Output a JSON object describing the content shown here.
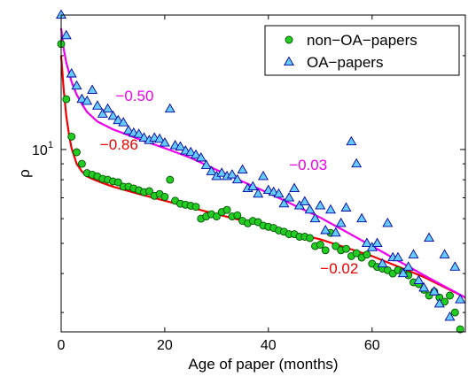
{
  "chart_data": {
    "type": "scatter",
    "xlabel": "Age of paper (months)",
    "ylabel": "ρ",
    "xlim": [
      0,
      78
    ],
    "ylim": [
      2.6,
      27
    ],
    "yscale": "log",
    "grid": false,
    "legend_placement": "top-right",
    "x_ticks": [
      {
        "value": 0,
        "label": "0"
      },
      {
        "value": 20,
        "label": "20"
      },
      {
        "value": 40,
        "label": "40"
      },
      {
        "value": 60,
        "label": "60"
      }
    ],
    "y_ticks": [
      {
        "value": 10,
        "label": "10",
        "sup": "1"
      }
    ],
    "series": [
      {
        "name": "non−OA−papers",
        "marker": "circle",
        "color": "#22cc22",
        "edge": "#005000",
        "points": [
          [
            0,
            21.8
          ],
          [
            1,
            14.5
          ],
          [
            2,
            11.0
          ],
          [
            3,
            9.8
          ],
          [
            4,
            9.0
          ],
          [
            5,
            8.4
          ],
          [
            6,
            8.3
          ],
          [
            7,
            8.2
          ],
          [
            8,
            8.05
          ],
          [
            9,
            8.0
          ],
          [
            10,
            7.9
          ],
          [
            11,
            7.85
          ],
          [
            12,
            7.6
          ],
          [
            13,
            7.6
          ],
          [
            14,
            7.5
          ],
          [
            15,
            7.4
          ],
          [
            16,
            7.3
          ],
          [
            17,
            7.35
          ],
          [
            18,
            7.1
          ],
          [
            19,
            7.2
          ],
          [
            20,
            7.05
          ],
          [
            21,
            8.0
          ],
          [
            22,
            6.85
          ],
          [
            23,
            6.7
          ],
          [
            24,
            6.65
          ],
          [
            25,
            6.6
          ],
          [
            26,
            6.55
          ],
          [
            27,
            6.0
          ],
          [
            28,
            6.1
          ],
          [
            29,
            6.2
          ],
          [
            30,
            6.1
          ],
          [
            31,
            6.3
          ],
          [
            32,
            6.4
          ],
          [
            33,
            6.1
          ],
          [
            34,
            6.15
          ],
          [
            35,
            5.9
          ],
          [
            36,
            5.8
          ],
          [
            37,
            5.9
          ],
          [
            38,
            5.85
          ],
          [
            39,
            5.7
          ],
          [
            40,
            5.65
          ],
          [
            41,
            5.6
          ],
          [
            42,
            5.5
          ],
          [
            43,
            5.45
          ],
          [
            44,
            5.35
          ],
          [
            45,
            5.35
          ],
          [
            46,
            5.25
          ],
          [
            47,
            5.25
          ],
          [
            48,
            5.2
          ],
          [
            49,
            4.9
          ],
          [
            50,
            4.95
          ],
          [
            51,
            4.75
          ],
          [
            52,
            5.4
          ],
          [
            53,
            4.9
          ],
          [
            54,
            4.75
          ],
          [
            55,
            4.8
          ],
          [
            56,
            4.55
          ],
          [
            57,
            4.65
          ],
          [
            58,
            4.5
          ],
          [
            59,
            4.6
          ],
          [
            60,
            4.3
          ],
          [
            61,
            4.2
          ],
          [
            62,
            4.15
          ],
          [
            63,
            4.1
          ],
          [
            64,
            4.0
          ],
          [
            65,
            4.1
          ],
          [
            66,
            4.05
          ],
          [
            67,
            3.95
          ],
          [
            68,
            3.75
          ],
          [
            69,
            3.7
          ],
          [
            70,
            3.55
          ],
          [
            71,
            3.4
          ],
          [
            72,
            3.5
          ],
          [
            73,
            3.35
          ],
          [
            74,
            3.25
          ],
          [
            75,
            3.4
          ],
          [
            76,
            3.0
          ],
          [
            77,
            2.65
          ]
        ]
      },
      {
        "name": "OA−papers",
        "marker": "triangle",
        "color": "#66ccff",
        "edge": "#0000a0",
        "points": [
          [
            0,
            27.0
          ],
          [
            1,
            23.2
          ],
          [
            2,
            17.5
          ],
          [
            3,
            16.0
          ],
          [
            4,
            14.5
          ],
          [
            5,
            14.3
          ],
          [
            6,
            15.5
          ],
          [
            7,
            13.8
          ],
          [
            8,
            13.0
          ],
          [
            9,
            13.5
          ],
          [
            10,
            12.8
          ],
          [
            11,
            12.4
          ],
          [
            12,
            12.2
          ],
          [
            13,
            11.5
          ],
          [
            14,
            11.3
          ],
          [
            15,
            11.2
          ],
          [
            16,
            10.9
          ],
          [
            17,
            10.7
          ],
          [
            18,
            10.9
          ],
          [
            19,
            10.8
          ],
          [
            20,
            10.5
          ],
          [
            21,
            13.5
          ],
          [
            22,
            10.3
          ],
          [
            23,
            10.2
          ],
          [
            24,
            9.9
          ],
          [
            25,
            9.8
          ],
          [
            26,
            9.6
          ],
          [
            27,
            9.4
          ],
          [
            28,
            8.9
          ],
          [
            29,
            8.5
          ],
          [
            30,
            8.2
          ],
          [
            31,
            8.4
          ],
          [
            32,
            8.2
          ],
          [
            33,
            8.3
          ],
          [
            34,
            8.0
          ],
          [
            35,
            8.6
          ],
          [
            36,
            7.5
          ],
          [
            37,
            7.6
          ],
          [
            38,
            7.2
          ],
          [
            39,
            8.2
          ],
          [
            40,
            7.4
          ],
          [
            41,
            7.3
          ],
          [
            42,
            7.2
          ],
          [
            43,
            6.7
          ],
          [
            44,
            7.0
          ],
          [
            45,
            7.5
          ],
          [
            46,
            6.6
          ],
          [
            47,
            6.8
          ],
          [
            48,
            6.4
          ],
          [
            49,
            6.0
          ],
          [
            50,
            6.6
          ],
          [
            51,
            5.5
          ],
          [
            52,
            6.4
          ],
          [
            53,
            5.4
          ],
          [
            54,
            5.8
          ],
          [
            55,
            6.5
          ],
          [
            56,
            10.6
          ],
          [
            57,
            9.0
          ],
          [
            58,
            6.0
          ],
          [
            59,
            5.0
          ],
          [
            60,
            4.85
          ],
          [
            61,
            5.0
          ],
          [
            62,
            4.3
          ],
          [
            63,
            5.8
          ],
          [
            64,
            4.5
          ],
          [
            65,
            4.5
          ],
          [
            66,
            4.0
          ],
          [
            67,
            4.2
          ],
          [
            68,
            4.6
          ],
          [
            69,
            3.8
          ],
          [
            70,
            3.6
          ],
          [
            71,
            5.2
          ],
          [
            72,
            3.5
          ],
          [
            73,
            3.2
          ],
          [
            74,
            4.6
          ],
          [
            75,
            2.9
          ],
          [
            76,
            4.2
          ],
          [
            77,
            3.3
          ]
        ]
      }
    ],
    "fits": [
      {
        "color": "#ee0000",
        "points": [
          [
            0,
            20.0
          ],
          [
            0.5,
            15.5
          ],
          [
            1,
            12.8
          ],
          [
            1.5,
            11.2
          ],
          [
            2,
            10.1
          ],
          [
            3,
            9.0
          ],
          [
            4,
            8.5
          ],
          [
            5,
            8.2
          ],
          [
            6,
            8.05
          ],
          [
            8,
            7.8
          ],
          [
            10,
            7.6
          ],
          [
            15,
            7.2
          ],
          [
            20,
            6.85
          ],
          [
            30,
            6.2
          ],
          [
            40,
            5.65
          ],
          [
            50,
            5.15
          ],
          [
            60,
            4.55
          ],
          [
            70,
            3.9
          ],
          [
            78,
            3.35
          ]
        ]
      },
      {
        "color": "#ee00ee",
        "points": [
          [
            0,
            24.5
          ],
          [
            0.5,
            21.0
          ],
          [
            1,
            19.0
          ],
          [
            2,
            16.5
          ],
          [
            3,
            15.0
          ],
          [
            4,
            14.0
          ],
          [
            5,
            13.2
          ],
          [
            7,
            12.3
          ],
          [
            10,
            11.6
          ],
          [
            15,
            10.8
          ],
          [
            20,
            10.1
          ],
          [
            25,
            9.4
          ],
          [
            30,
            8.6
          ],
          [
            40,
            7.25
          ],
          [
            50,
            6.05
          ],
          [
            60,
            4.9
          ],
          [
            70,
            3.95
          ],
          [
            78,
            3.35
          ]
        ]
      }
    ],
    "annotations": [
      {
        "text": "−0.50",
        "x": 10.5,
        "y": 14.3,
        "color": "#ee00ee"
      },
      {
        "text": "−0.86",
        "x": 7.5,
        "y": 10.0,
        "color": "#ee0000"
      },
      {
        "text": "−0.03",
        "x": 44,
        "y": 8.6,
        "color": "#ee00ee"
      },
      {
        "text": "−0.02",
        "x": 50,
        "y": 4.0,
        "color": "#ee0000"
      }
    ]
  }
}
